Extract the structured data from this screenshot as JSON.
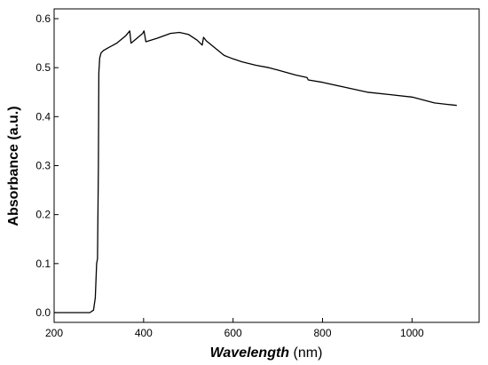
{
  "chart_data": {
    "type": "line",
    "xlabel_main": "Wavelength",
    "xlabel_unit": " (nm)",
    "ylabel": "Absorbance (a.u.)",
    "xlim": [
      200,
      1150
    ],
    "ylim": [
      -0.02,
      0.62
    ],
    "xticks": [
      200,
      400,
      600,
      800,
      1000
    ],
    "yticks": [
      0.0,
      0.1,
      0.2,
      0.3,
      0.4,
      0.5,
      0.6
    ],
    "ytick_labels": [
      "0.0",
      "0.1",
      "0.2",
      "0.3",
      "0.4",
      "0.5",
      "0.6"
    ],
    "grid": false,
    "line_color": "#000000",
    "series": [
      {
        "x": [
          200,
          250,
          280,
          288,
          292,
          295,
          297,
          299,
          300,
          302,
          305,
          310,
          320,
          340,
          360,
          369,
          372,
          385,
          398,
          401,
          405,
          430,
          460,
          480,
          500,
          520,
          531,
          534,
          540,
          560,
          580,
          600,
          620,
          650,
          680,
          700,
          740,
          765,
          768,
          800,
          850,
          900,
          950,
          1000,
          1050,
          1080,
          1100
        ],
        "y": [
          0.0,
          0.0,
          0.0,
          0.005,
          0.03,
          0.1,
          0.11,
          0.3,
          0.49,
          0.52,
          0.53,
          0.535,
          0.54,
          0.55,
          0.565,
          0.575,
          0.55,
          0.56,
          0.57,
          0.575,
          0.553,
          0.56,
          0.57,
          0.572,
          0.568,
          0.556,
          0.546,
          0.562,
          0.555,
          0.54,
          0.525,
          0.518,
          0.512,
          0.505,
          0.5,
          0.495,
          0.485,
          0.48,
          0.475,
          0.47,
          0.46,
          0.45,
          0.445,
          0.44,
          0.428,
          0.425,
          0.423
        ]
      }
    ]
  }
}
